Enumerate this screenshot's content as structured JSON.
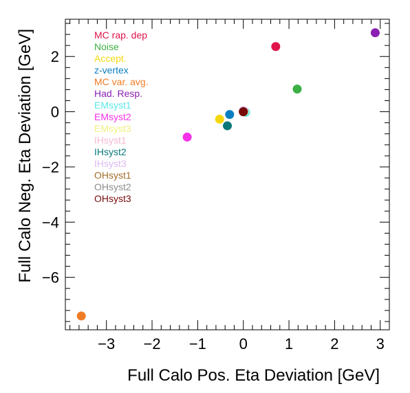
{
  "chart_data": {
    "type": "scatter",
    "title": "",
    "xlabel": "Full Calo Pos. Eta Deviation [GeV]",
    "ylabel": "Full Calo Neg. Eta Deviation [GeV]",
    "xlim": [
      -3.9,
      3.2
    ],
    "ylim": [
      -7.9,
      3.35
    ],
    "x_ticks": [
      -3,
      -2,
      -1,
      0,
      1,
      2,
      3
    ],
    "y_ticks": [
      -6,
      -4,
      -2,
      0,
      2
    ],
    "x_tick_labels": [
      "−3",
      "−2",
      "−1",
      "0",
      "1",
      "2",
      "3"
    ],
    "y_tick_labels": [
      "−6",
      "−4",
      "−2",
      "0",
      "2"
    ],
    "grid": false,
    "legend_position": "top-left",
    "series": [
      {
        "name": "MC rap. dep",
        "color": "#e0134b",
        "x": [
          0.71
        ],
        "y": [
          2.36
        ]
      },
      {
        "name": "Noise",
        "color": "#3cb044",
        "x": [
          1.18
        ],
        "y": [
          0.82
        ]
      },
      {
        "name": "Accept.",
        "color": "#f5d80c",
        "x": [
          -0.52
        ],
        "y": [
          -0.27
        ]
      },
      {
        "name": "z-vertex",
        "color": "#0a7fc0",
        "x": [
          -0.3
        ],
        "y": [
          -0.1
        ]
      },
      {
        "name": "MC var. avg.",
        "color": "#f07d26",
        "x": [
          -3.55
        ],
        "y": [
          -7.4
        ]
      },
      {
        "name": "Had. Resp.",
        "color": "#8a1fb2",
        "x": [
          2.89
        ],
        "y": [
          2.86
        ]
      },
      {
        "name": "EMsyst1",
        "color": "#5ae8e8",
        "x": [
          0.05
        ],
        "y": [
          -0.02
        ]
      },
      {
        "name": "EMsyst2",
        "color": "#f532e8",
        "x": [
          -1.23
        ],
        "y": [
          -0.92
        ]
      },
      {
        "name": "EMsyst3",
        "color": "#f0f07e",
        "x": [
          0.02
        ],
        "y": [
          0.01
        ]
      },
      {
        "name": "IHsyst1",
        "color": "#f5b8d2",
        "x": [
          0.01
        ],
        "y": [
          0.03
        ]
      },
      {
        "name": "IHsyst2",
        "color": "#0a7878",
        "x": [
          -0.35
        ],
        "y": [
          -0.51
        ]
      },
      {
        "name": "IHsyst3",
        "color": "#dcb8f0",
        "x": [
          0.0
        ],
        "y": [
          0.04
        ]
      },
      {
        "name": "OHsyst1",
        "color": "#a06e28",
        "x": [
          0.0
        ],
        "y": [
          0.0
        ]
      },
      {
        "name": "OHsyst2",
        "color": "#8c8c8c",
        "x": [
          0.0
        ],
        "y": [
          0.0
        ]
      },
      {
        "name": "OHsyst3",
        "color": "#780a0a",
        "x": [
          0.0
        ],
        "y": [
          0.0
        ]
      }
    ]
  }
}
